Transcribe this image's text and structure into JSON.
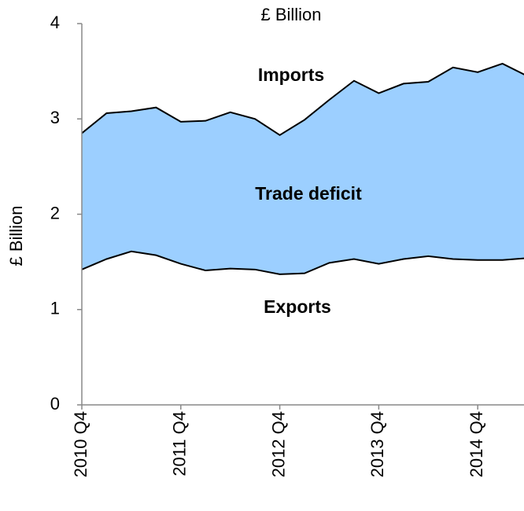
{
  "chart_data": {
    "type": "area_between",
    "title": "£ Billion",
    "y_label": "£ Billion",
    "categories": [
      "2010 Q4",
      null,
      null,
      null,
      "2011 Q4",
      null,
      null,
      null,
      "2012 Q4",
      null,
      null,
      null,
      "2013 Q4",
      null,
      null,
      null,
      "2014 Q4",
      null,
      null
    ],
    "series": [
      {
        "name": "Imports",
        "color": "#000000",
        "values": [
          2.85,
          3.06,
          3.08,
          3.12,
          2.97,
          2.98,
          3.07,
          3.0,
          2.83,
          2.99,
          3.2,
          3.4,
          3.27,
          3.37,
          3.39,
          3.54,
          3.49,
          3.58,
          3.45
        ]
      },
      {
        "name": "Exports",
        "color": "#000000",
        "values": [
          1.42,
          1.53,
          1.61,
          1.57,
          1.48,
          1.41,
          1.43,
          1.42,
          1.37,
          1.38,
          1.49,
          1.53,
          1.48,
          1.53,
          1.56,
          1.53,
          1.52,
          1.52,
          1.54
        ]
      }
    ],
    "fill_color": "#9ccfff",
    "annotation": "Trade deficit",
    "ylim": [
      0,
      4
    ],
    "yticks": [
      0,
      1,
      2,
      3,
      4
    ],
    "grid": false
  }
}
